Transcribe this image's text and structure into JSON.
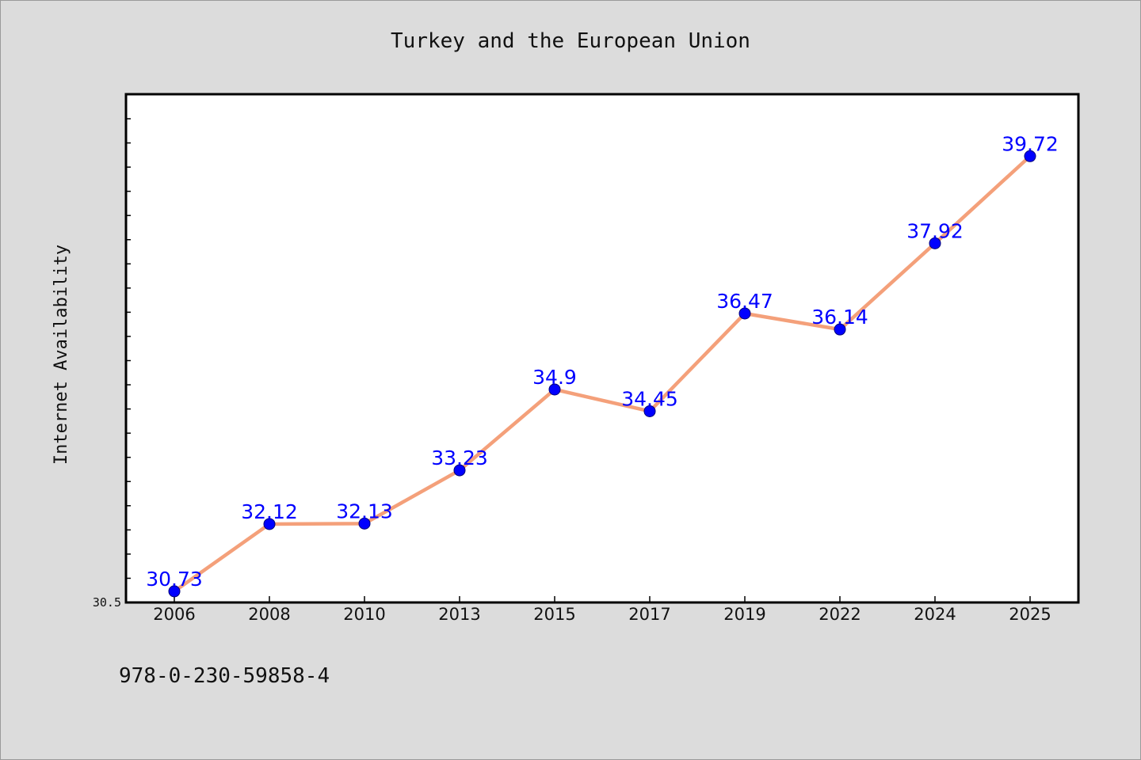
{
  "chart_data": {
    "type": "line",
    "title": "Turkey and the European Union",
    "xlabel": "",
    "ylabel": "Internet Availability",
    "categories": [
      "2006",
      "2008",
      "2010",
      "2013",
      "2015",
      "2017",
      "2019",
      "2022",
      "2024",
      "2025"
    ],
    "series": [
      {
        "values": [
          30.73,
          32.12,
          32.13,
          33.23,
          34.9,
          34.45,
          36.47,
          36.14,
          37.92,
          39.72
        ],
        "data_labels": [
          "30.73",
          "32.12",
          "32.13",
          "33.23",
          "34.9",
          "34.45",
          "36.47",
          "36.14",
          "37.92",
          "39.72"
        ]
      }
    ],
    "ylim": [
      30.5,
      41.0
    ],
    "y_tick_labels": [
      "30.5"
    ],
    "grid": false,
    "legend": "none",
    "colors": {
      "line": "#f4a07a",
      "marker": "#0000ff",
      "data_label": "#0000ff",
      "background": "#dcdcdc",
      "plot_background": "#ffffff"
    }
  },
  "footer": {
    "isbn": "978-0-230-59858-4"
  }
}
